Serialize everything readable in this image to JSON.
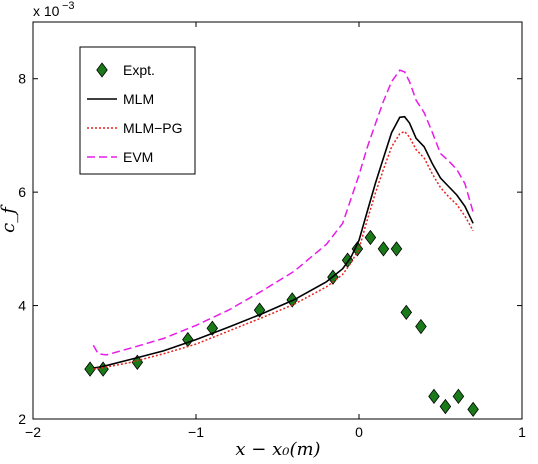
{
  "chart_data": {
    "type": "line",
    "title": "",
    "xlabel": "x − x₀(m)",
    "ylabel": "c_f",
    "y_multiplier_label": "x 10",
    "y_multiplier_exponent": "−3",
    "xlim": [
      -2,
      1
    ],
    "ylim": [
      2,
      9
    ],
    "xticks": [
      -2,
      -1,
      0,
      1
    ],
    "xtick_labels": [
      "−2",
      "−1",
      "0",
      "1"
    ],
    "yticks": [
      2,
      4,
      6,
      8
    ],
    "ytick_labels": [
      "2",
      "4",
      "6",
      "8"
    ],
    "grid": false,
    "legend_position": "top-left",
    "series": [
      {
        "name": "Expt.",
        "kind": "markers",
        "marker": "diamond",
        "color": "#1a7a1a",
        "x": [
          -1.65,
          -1.57,
          -1.36,
          -1.05,
          -0.9,
          -0.61,
          -0.41,
          -0.16,
          -0.07,
          -0.01,
          0.07,
          0.15,
          0.23,
          0.29,
          0.38,
          0.46,
          0.53,
          0.61,
          0.7
        ],
        "y": [
          2.88,
          2.88,
          3.0,
          3.4,
          3.6,
          3.92,
          4.1,
          4.5,
          4.8,
          5.0,
          5.2,
          5.0,
          5.0,
          3.88,
          3.63,
          2.4,
          2.22,
          2.4,
          2.17
        ]
      },
      {
        "name": "MLM",
        "kind": "line",
        "dash": "solid",
        "color": "#000000",
        "x": [
          -1.63,
          -1.58,
          -1.4,
          -1.2,
          -1.0,
          -0.8,
          -0.6,
          -0.4,
          -0.2,
          -0.1,
          -0.05,
          0.0,
          0.05,
          0.1,
          0.15,
          0.2,
          0.25,
          0.28,
          0.31,
          0.35,
          0.4,
          0.45,
          0.5,
          0.55,
          0.6,
          0.65,
          0.7
        ],
        "y": [
          2.9,
          2.92,
          3.05,
          3.2,
          3.4,
          3.62,
          3.85,
          4.1,
          4.42,
          4.65,
          4.85,
          5.15,
          5.65,
          6.15,
          6.6,
          7.05,
          7.32,
          7.33,
          7.22,
          6.95,
          6.8,
          6.5,
          6.25,
          6.1,
          5.95,
          5.75,
          5.45
        ]
      },
      {
        "name": "MLM−PG",
        "kind": "line",
        "dash": "dotted",
        "color": "#e8231c",
        "x": [
          -1.63,
          -1.58,
          -1.4,
          -1.2,
          -1.0,
          -0.8,
          -0.6,
          -0.4,
          -0.2,
          -0.1,
          -0.05,
          0.0,
          0.05,
          0.1,
          0.15,
          0.2,
          0.25,
          0.28,
          0.31,
          0.35,
          0.4,
          0.45,
          0.5,
          0.55,
          0.6,
          0.65,
          0.7
        ],
        "y": [
          2.88,
          2.9,
          3.0,
          3.15,
          3.32,
          3.55,
          3.78,
          4.02,
          4.33,
          4.55,
          4.75,
          5.0,
          5.5,
          5.98,
          6.4,
          6.8,
          7.03,
          7.07,
          6.97,
          6.75,
          6.6,
          6.32,
          6.08,
          5.92,
          5.78,
          5.58,
          5.32
        ]
      },
      {
        "name": "EVM",
        "kind": "line",
        "dash": "dashed",
        "color": "#e81ce8",
        "x": [
          -1.63,
          -1.6,
          -1.55,
          -1.4,
          -1.2,
          -1.0,
          -0.8,
          -0.6,
          -0.4,
          -0.2,
          -0.1,
          0.0,
          0.05,
          0.1,
          0.15,
          0.2,
          0.25,
          0.28,
          0.31,
          0.35,
          0.4,
          0.45,
          0.5,
          0.55,
          0.6,
          0.65,
          0.7
        ],
        "y": [
          3.3,
          3.15,
          3.13,
          3.25,
          3.42,
          3.65,
          3.92,
          4.25,
          4.6,
          5.08,
          5.45,
          6.3,
          6.78,
          7.2,
          7.6,
          7.95,
          8.15,
          8.12,
          7.95,
          7.62,
          7.4,
          7.05,
          6.68,
          6.55,
          6.4,
          6.15,
          5.65
        ]
      }
    ]
  }
}
